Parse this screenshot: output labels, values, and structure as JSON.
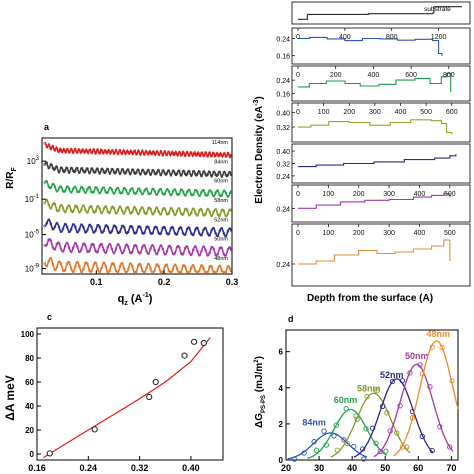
{
  "figure": {
    "panels": [
      "a",
      "b",
      "c",
      "d"
    ]
  },
  "chart_data": [
    {
      "panel_label": "a",
      "type": "scatter",
      "xlabel_symbol": "q",
      "xlabel_sub": "z",
      "xlabel_unit": " (A",
      "xlabel_sup": "-1",
      "xlabel_close": ")",
      "ylabel_main": "R/R",
      "ylabel_sub": "F",
      "x_ticks": [
        "0.1",
        "0.2",
        "0.3"
      ],
      "x_tick_values": [
        0.1,
        0.2,
        0.3
      ],
      "xlim": [
        0.02,
        0.3
      ],
      "y_ticks": [
        {
          "base": "10",
          "exp": "3",
          "pos": 0.17
        },
        {
          "base": "10",
          "exp": "-1",
          "pos": 0.45
        },
        {
          "base": "10",
          "exp": "-5",
          "pos": 0.71
        },
        {
          "base": "10",
          "exp": "-9",
          "pos": 0.96
        }
      ],
      "series": [
        {
          "name": "114nm",
          "color": "#d81e1e",
          "period": 0.0055
        },
        {
          "name": "84nm",
          "color": "#3c3c3c",
          "period": 0.0075
        },
        {
          "name": "60nm",
          "color": "#27a34a",
          "period": 0.0105
        },
        {
          "name": "58nm",
          "color": "#8a9a2a",
          "period": 0.0108
        },
        {
          "name": "52nm",
          "color": "#2e2e8c",
          "period": 0.0121
        },
        {
          "name": "50nm",
          "color": "#a23aa8",
          "period": 0.0126
        },
        {
          "name": "48nm",
          "color": "#e0782a",
          "period": 0.0131
        }
      ]
    },
    {
      "panel_label": "b",
      "type": "line",
      "ylabel": "Electron Density (eA",
      "ylabel_sup": "-3",
      "ylabel_close": ")",
      "xlabel": "Depth from the surface (A)",
      "substrate_label": "substrate",
      "subpanels": [
        {
          "color": "#2a2a2a",
          "xticks": [],
          "xticks_at": [],
          "xmax": 1400,
          "yticks": [],
          "profile": [
            [
              0,
              0.1
            ],
            [
              80,
              0.45
            ],
            [
              600,
              0.5
            ],
            [
              1150,
              0.55
            ],
            [
              1160,
              1.0
            ],
            [
              1400,
              1.0
            ]
          ]
        },
        {
          "color": "#2e57b5",
          "xticks": [
            "0",
            "400",
            "800",
            "1200"
          ],
          "xticks_at": [
            0,
            400,
            800,
            1200
          ],
          "xmax": 1400,
          "yticks": [
            "0.24",
            "0.16"
          ],
          "ylim": [
            0.14,
            0.27
          ],
          "profile": [
            [
              0,
              0.24
            ],
            [
              100,
              0.245
            ],
            [
              250,
              0.238
            ],
            [
              400,
              0.23
            ],
            [
              550,
              0.24
            ],
            [
              700,
              0.238
            ],
            [
              850,
              0.232
            ],
            [
              1000,
              0.236
            ],
            [
              1150,
              0.23
            ],
            [
              1200,
              0.17
            ],
            [
              1230,
              0.16
            ]
          ]
        },
        {
          "color": "#1e9a4e",
          "xticks": [
            "0",
            "200",
            "400",
            "600",
            "800"
          ],
          "xticks_at": [
            0,
            200,
            400,
            600,
            800
          ],
          "xmax": 870,
          "yticks": [
            "0.24",
            "0.16"
          ],
          "ylim": [
            0.14,
            0.3
          ],
          "profile": [
            [
              0,
              0.2
            ],
            [
              60,
              0.22
            ],
            [
              150,
              0.235
            ],
            [
              250,
              0.22
            ],
            [
              330,
              0.205
            ],
            [
              430,
              0.215
            ],
            [
              520,
              0.24
            ],
            [
              620,
              0.25
            ],
            [
              700,
              0.22
            ],
            [
              760,
              0.26
            ],
            [
              790,
              0.28
            ],
            [
              810,
              0.17
            ]
          ]
        },
        {
          "color": "#9aa52a",
          "xticks": [
            "0",
            "100",
            "200",
            "300",
            "400",
            "500",
            "600"
          ],
          "xticks_at": [
            0,
            100,
            200,
            300,
            400,
            500,
            600
          ],
          "xmax": 640,
          "yticks": [
            "0.40",
            "0.32"
          ],
          "ylim": [
            0.26,
            0.43
          ],
          "profile": [
            [
              0,
              0.32
            ],
            [
              50,
              0.33
            ],
            [
              120,
              0.35
            ],
            [
              200,
              0.345
            ],
            [
              280,
              0.33
            ],
            [
              360,
              0.345
            ],
            [
              440,
              0.36
            ],
            [
              520,
              0.355
            ],
            [
              560,
              0.34
            ],
            [
              580,
              0.29
            ],
            [
              600,
              0.28
            ]
          ]
        },
        {
          "color": "#2a2a8c",
          "xticks": [],
          "xticks_at": [],
          "xmax": 540,
          "yticks": [
            "0.40",
            "0.32",
            "0.24"
          ],
          "ylim": [
            0.22,
            0.42
          ],
          "profile": [
            [
              0,
              0.3
            ],
            [
              60,
              0.31
            ],
            [
              150,
              0.32
            ],
            [
              250,
              0.33
            ],
            [
              350,
              0.345
            ],
            [
              450,
              0.355
            ],
            [
              500,
              0.37
            ],
            [
              520,
              0.38
            ]
          ]
        },
        {
          "color": "#9a3fb0",
          "xticks": [
            "0",
            "100",
            "200",
            "300",
            "400",
            "500"
          ],
          "xticks_at": [
            0,
            100,
            200,
            300,
            400,
            500
          ],
          "xmax": 540,
          "yticks": [
            "0.24"
          ],
          "ylim": [
            0.18,
            0.36
          ],
          "profile": [
            [
              0,
              0.24
            ],
            [
              60,
              0.26
            ],
            [
              140,
              0.28
            ],
            [
              220,
              0.29
            ],
            [
              300,
              0.295
            ],
            [
              380,
              0.31
            ],
            [
              440,
              0.32
            ],
            [
              480,
              0.33
            ],
            [
              500,
              0.31
            ]
          ]
        },
        {
          "color": "#e08a3a",
          "xticks": [
            "0",
            "100",
            "200",
            "300",
            "400",
            "500"
          ],
          "xticks_at": [
            0,
            100,
            200,
            300,
            400,
            500
          ],
          "xmax": 540,
          "yticks": [
            "0.24"
          ],
          "ylim": [
            0.18,
            0.36
          ],
          "profile": [
            [
              0,
              0.24
            ],
            [
              60,
              0.25
            ],
            [
              120,
              0.27
            ],
            [
              200,
              0.285
            ],
            [
              260,
              0.275
            ],
            [
              320,
              0.28
            ],
            [
              380,
              0.29
            ],
            [
              440,
              0.3
            ],
            [
              480,
              0.32
            ],
            [
              500,
              0.25
            ]
          ]
        }
      ]
    },
    {
      "panel_label": "c",
      "type": "scatter",
      "ylabel": "ΔA meV",
      "xlabel_visible": "",
      "x_ticks": [
        "0.16",
        "0.24",
        "0.32",
        "0.40"
      ],
      "x_tick_values": [
        0.16,
        0.24,
        0.32,
        0.4
      ],
      "xlim": [
        0.16,
        0.45
      ],
      "y_ticks": [
        "0",
        "20",
        "40",
        "60",
        "80",
        "100"
      ],
      "y_tick_values": [
        0,
        20,
        40,
        60,
        80,
        100
      ],
      "ylim": [
        -5,
        105
      ],
      "points": [
        [
          0.18,
          0.5
        ],
        [
          0.25,
          20.5
        ],
        [
          0.335,
          47.5
        ],
        [
          0.345,
          60
        ],
        [
          0.39,
          82
        ],
        [
          0.405,
          93.5
        ],
        [
          0.42,
          92.5
        ]
      ],
      "fit": [
        [
          0.17,
          -3
        ],
        [
          0.2,
          7
        ],
        [
          0.24,
          20
        ],
        [
          0.28,
          33
        ],
        [
          0.32,
          46
        ],
        [
          0.36,
          60
        ],
        [
          0.4,
          77
        ],
        [
          0.43,
          97
        ]
      ],
      "fit_color": "#e01b1b"
    },
    {
      "panel_label": "d",
      "type": "scatter",
      "ylabel_main": "ΔG",
      "ylabel_sub": "PS-PS",
      "ylabel_unit": " (mJ/m",
      "ylabel_sup": "2",
      "ylabel_close": ")",
      "x_ticks": [
        "20",
        "30",
        "40",
        "50",
        "60",
        "70"
      ],
      "x_tick_values": [
        20,
        30,
        40,
        50,
        60,
        70
      ],
      "xlim": [
        20,
        72
      ],
      "y_ticks": [
        "0",
        "2",
        "4",
        "6"
      ],
      "y_tick_values": [
        0,
        2,
        4,
        6
      ],
      "ylim": [
        0,
        7.2
      ],
      "series": [
        {
          "name": "84nm",
          "color": "#2e57b5",
          "center": 33.5,
          "amp": 1.5,
          "width": 5.2,
          "label_x": 28.5,
          "label_y": 1.9
        },
        {
          "name": "60nm",
          "color": "#27a34a",
          "center": 39.5,
          "amp": 2.8,
          "width": 5.0,
          "label_x": 38,
          "label_y": 3.15
        },
        {
          "name": "58nm",
          "color": "#8a9a2a",
          "center": 46.5,
          "amp": 3.7,
          "width": 5.2,
          "label_x": 45,
          "label_y": 3.8
        },
        {
          "name": "52nm",
          "color": "#2a2a8c",
          "center": 53.5,
          "amp": 4.5,
          "width": 5.0,
          "label_x": 52,
          "label_y": 4.55
        },
        {
          "name": "50nm",
          "color": "#a23aa8",
          "center": 59.5,
          "amp": 5.3,
          "width": 5.0,
          "label_x": 59.5,
          "label_y": 5.6
        },
        {
          "name": "48nm",
          "color": "#f08a28",
          "center": 65.5,
          "amp": 6.6,
          "width": 5.0,
          "label_x": 66,
          "label_y": 6.8
        }
      ]
    }
  ]
}
